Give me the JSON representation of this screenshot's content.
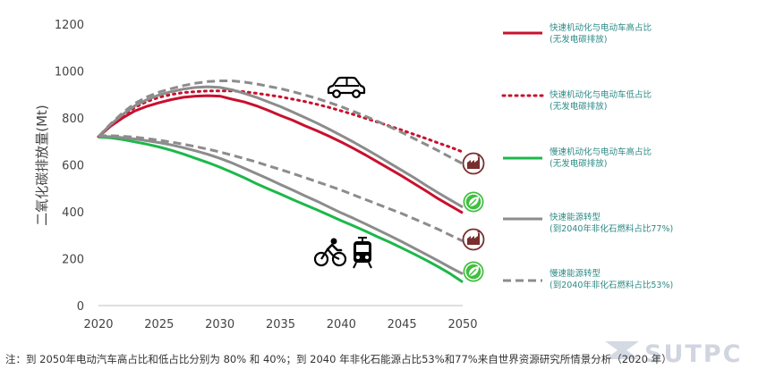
{
  "chart_data": {
    "type": "line",
    "title": "",
    "xlabel": "",
    "ylabel": "二氧化碳排放量(Mt)",
    "xlim": [
      2020,
      2050
    ],
    "ylim": [
      0,
      1200
    ],
    "x_ticks": [
      "2020",
      "2025",
      "2030",
      "2035",
      "2040",
      "2045",
      "2050"
    ],
    "y_ticks": [
      "0",
      "200",
      "400",
      "600",
      "800",
      "1000",
      "1200"
    ],
    "x": [
      2020,
      2021,
      2022,
      2023,
      2024,
      2025,
      2026,
      2027,
      2028,
      2029,
      2030,
      2031,
      2032,
      2033,
      2034,
      2035,
      2036,
      2037,
      2038,
      2039,
      2040,
      2041,
      2042,
      2043,
      2044,
      2045,
      2046,
      2047,
      2048,
      2049,
      2050
    ],
    "series": [
      {
        "name": "快速机动化与电动车高占比",
        "name_line2": "(无发电碳排放)",
        "color": "#c8102e",
        "style": "solid",
        "values": [
          720,
          765,
          800,
          830,
          850,
          865,
          878,
          888,
          893,
          895,
          893,
          880,
          868,
          852,
          832,
          810,
          790,
          767,
          745,
          722,
          697,
          670,
          642,
          612,
          582,
          552,
          520,
          488,
          455,
          425,
          395
        ]
      },
      {
        "name": "快速机动化与电动车低占比",
        "name_line2": "(无发电碳排放)",
        "color": "#c8102e",
        "style": "dotted",
        "values": [
          720,
          770,
          810,
          845,
          870,
          888,
          900,
          908,
          912,
          915,
          915,
          915,
          912,
          905,
          898,
          890,
          880,
          870,
          858,
          845,
          830,
          815,
          798,
          782,
          765,
          748,
          730,
          712,
          693,
          675,
          655
        ]
      },
      {
        "name": "慢速机动化与电动车高占比",
        "name_line2": "(无发电碳排放)",
        "color": "#1db84a",
        "style": "solid",
        "values": [
          718,
          715,
          708,
          698,
          688,
          676,
          662,
          646,
          628,
          610,
          590,
          568,
          545,
          520,
          497,
          475,
          452,
          430,
          408,
          385,
          362,
          340,
          317,
          293,
          270,
          245,
          220,
          193,
          165,
          135,
          100
        ]
      },
      {
        "name": "快速能源转型",
        "name_line2": "(到2040年非化石燃料占比77%)",
        "color": "#8c8c8c",
        "style": "solid",
        "values": [
          720,
          772,
          815,
          852,
          878,
          898,
          912,
          923,
          930,
          933,
          930,
          920,
          905,
          888,
          868,
          848,
          825,
          802,
          778,
          752,
          725,
          697,
          668,
          638,
          607,
          576,
          545,
          512,
          480,
          450,
          420
        ]
      },
      {
        "name": "慢速能源转型",
        "name_line2": "(到2040年非化石燃料占比53%)",
        "color": "#8c8c8c",
        "style": "dashed",
        "values": [
          720,
          775,
          822,
          862,
          890,
          910,
          925,
          938,
          948,
          955,
          958,
          958,
          953,
          945,
          935,
          925,
          912,
          898,
          883,
          866,
          848,
          828,
          807,
          785,
          762,
          738,
          712,
          686,
          660,
          632,
          605
        ]
      },
      {
        "name": "",
        "name_line2": "",
        "color": "#8c8c8c",
        "style": "solid",
        "values": [
          722,
          720,
          716,
          710,
          703,
          695,
          685,
          673,
          660,
          645,
          628,
          608,
          586,
          563,
          540,
          516,
          492,
          468,
          445,
          420,
          395,
          372,
          348,
          323,
          298,
          272,
          245,
          218,
          190,
          162,
          135
        ]
      },
      {
        "name": "",
        "name_line2": "",
        "color": "#8c8c8c",
        "style": "dashed",
        "values": [
          725,
          724,
          722,
          718,
          712,
          705,
          697,
          688,
          678,
          667,
          655,
          641,
          627,
          612,
          596,
          580,
          563,
          546,
          528,
          510,
          492,
          472,
          452,
          432,
          412,
          392,
          370,
          348,
          325,
          300,
          275
        ]
      }
    ]
  },
  "note": "注：到 2050年电动汽车高占比和低占比分别为 80% 和 40%；到 2040 年非化石能源占比53%和77%来自世界资源研究所情景分析（2020 年）",
  "watermark": "SUTPC",
  "colors": {
    "axis": "#bfbfbf",
    "tick_text": "#444444",
    "legend_text": "#2c8a86",
    "leaf_badge": "#3fbf3f",
    "factory_badge": "#7a2e2e",
    "transit_icon": "#000000"
  },
  "icons": [
    "car-icon",
    "bicycle-rider-icon",
    "tram-icon",
    "factory-emission-icon",
    "leaf-icon"
  ]
}
